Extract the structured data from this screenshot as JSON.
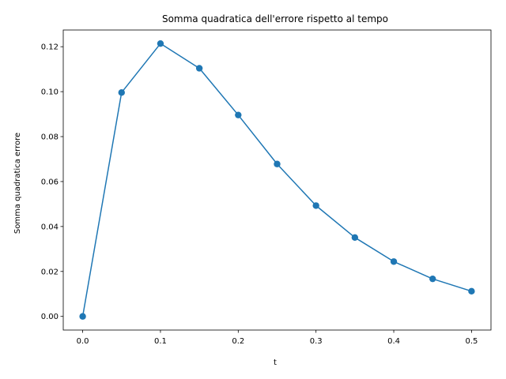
{
  "chart_data": {
    "type": "line",
    "title": "Somma quadratica dell'errore rispetto al tempo",
    "xlabel": "t",
    "ylabel": "Somma quadratica errore",
    "xlim": [
      -0.025,
      0.525
    ],
    "ylim": [
      -0.00607,
      0.12743
    ],
    "x_ticks": [
      0.0,
      0.1,
      0.2,
      0.3,
      0.4,
      0.5
    ],
    "x_tick_labels": [
      "0.0",
      "0.1",
      "0.2",
      "0.3",
      "0.4",
      "0.5"
    ],
    "y_ticks": [
      0.0,
      0.02,
      0.04,
      0.06,
      0.08,
      0.1,
      0.12
    ],
    "y_tick_labels": [
      "0.00",
      "0.02",
      "0.04",
      "0.06",
      "0.08",
      "0.10",
      "0.12"
    ],
    "grid": false,
    "series": [
      {
        "color": "#1f77b4",
        "marker": "circle",
        "x": [
          0.0,
          0.05,
          0.1,
          0.15,
          0.2,
          0.25,
          0.3,
          0.35,
          0.4,
          0.45,
          0.5
        ],
        "y": [
          0.0,
          0.0996,
          0.1214,
          0.1104,
          0.0896,
          0.0678,
          0.0493,
          0.0351,
          0.0244,
          0.0167,
          0.0112
        ]
      }
    ]
  }
}
